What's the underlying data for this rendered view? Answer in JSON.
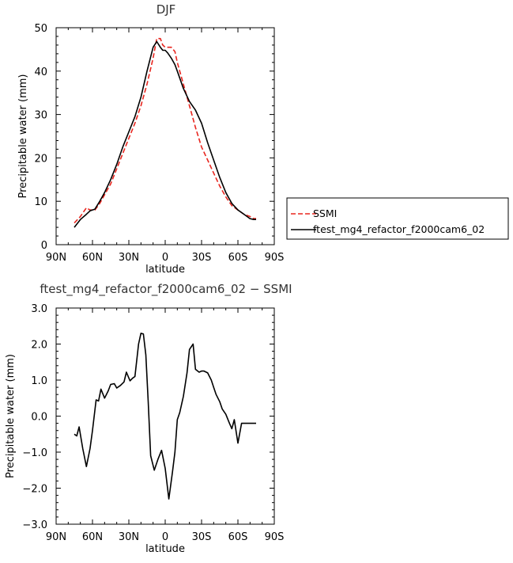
{
  "chart_data": [
    {
      "type": "line",
      "title": "DJF",
      "xlabel": "latitude",
      "ylabel": "Precipitable water (mm)",
      "xlim": [
        90,
        -90
      ],
      "ylim": [
        0,
        50
      ],
      "xticks": [
        90,
        60,
        30,
        0,
        -30,
        -60,
        -90
      ],
      "xticklabels": [
        "90N",
        "60N",
        "30N",
        "0",
        "30S",
        "60S",
        "90S"
      ],
      "yticks": [
        0,
        10,
        20,
        30,
        40,
        50
      ],
      "yticklabels": [
        "0",
        "10",
        "20",
        "30",
        "40",
        "50"
      ],
      "legend": "outside-right",
      "series": [
        {
          "name": "SSMI",
          "color": "#e8261f",
          "dash": true,
          "x": [
            75,
            70,
            65,
            62,
            58,
            54,
            50,
            45,
            40,
            35,
            30,
            25,
            20,
            15,
            10,
            7,
            4,
            2,
            0,
            -2,
            -5,
            -8,
            -10,
            -15,
            -20,
            -25,
            -30,
            -35,
            -40,
            -45,
            -50,
            -55,
            -60,
            -65,
            -70,
            -73,
            -75
          ],
          "y": [
            5.0,
            6.5,
            8.5,
            8.0,
            8.0,
            9.5,
            11.5,
            14.0,
            17.5,
            21.0,
            24.5,
            28.0,
            32.0,
            37.0,
            43.0,
            47.5,
            47.5,
            46.0,
            45.5,
            45.5,
            45.5,
            44.5,
            42.0,
            37.0,
            32.0,
            27.0,
            22.5,
            19.5,
            16.5,
            13.5,
            11.0,
            9.0,
            8.0,
            7.0,
            6.5,
            6.0,
            6.0
          ]
        },
        {
          "name": "ftest_mg4_refactor_f2000cam6_02",
          "color": "#000000",
          "dash": false,
          "x": [
            75,
            70,
            65,
            62,
            58,
            54,
            50,
            45,
            40,
            35,
            30,
            25,
            20,
            15,
            10,
            7,
            4,
            2,
            0,
            -2,
            -5,
            -8,
            -10,
            -15,
            -20,
            -25,
            -30,
            -35,
            -40,
            -45,
            -50,
            -55,
            -60,
            -65,
            -70,
            -73,
            -75
          ],
          "y": [
            4.0,
            5.8,
            7.0,
            7.8,
            8.2,
            10.0,
            12.0,
            15.0,
            18.5,
            22.5,
            26.0,
            29.5,
            34.0,
            40.0,
            45.5,
            46.8,
            45.5,
            44.8,
            44.8,
            44.2,
            43.0,
            41.5,
            40.0,
            36.0,
            33.0,
            31.0,
            28.0,
            23.5,
            19.5,
            15.5,
            12.0,
            9.5,
            8.0,
            7.0,
            6.0,
            5.8,
            5.8
          ]
        }
      ]
    },
    {
      "type": "line",
      "title": "ftest_mg4_refactor_f2000cam6_02 − SSMI",
      "xlabel": "latitude",
      "ylabel": "Precipitable water (mm)",
      "xlim": [
        90,
        -90
      ],
      "ylim": [
        -3,
        3
      ],
      "xticks": [
        90,
        60,
        30,
        0,
        -30,
        -60,
        -90
      ],
      "xticklabels": [
        "90N",
        "60N",
        "30N",
        "0",
        "30S",
        "60S",
        "90S"
      ],
      "yticks": [
        -3,
        -2,
        -1,
        0,
        1,
        2,
        3
      ],
      "yticklabels": [
        "−3.0",
        "−2.0",
        "−1.0",
        "0.0",
        "1.0",
        "2.0",
        "3.0"
      ],
      "series": [
        {
          "color": "#000000",
          "dash": false,
          "x": [
            75,
            73,
            71,
            68,
            65,
            62,
            60,
            57,
            55,
            53,
            50,
            47,
            45,
            42,
            40,
            37,
            34,
            32,
            29,
            27,
            25,
            22,
            20,
            18,
            16,
            14,
            12,
            9,
            6,
            3,
            0,
            -3,
            -6,
            -8,
            -10,
            -12,
            -15,
            -18,
            -20,
            -23,
            -25,
            -28,
            -30,
            -32,
            -35,
            -38,
            -40,
            -42,
            -45,
            -47,
            -50,
            -53,
            -55,
            -57,
            -60,
            -63,
            -65,
            -68,
            -70,
            -72,
            -75
          ],
          "y": [
            -0.5,
            -0.55,
            -0.3,
            -0.9,
            -1.4,
            -0.9,
            -0.4,
            0.45,
            0.42,
            0.75,
            0.5,
            0.7,
            0.88,
            0.9,
            0.78,
            0.85,
            0.95,
            1.22,
            0.98,
            1.05,
            1.1,
            2.0,
            2.3,
            2.28,
            1.7,
            0.4,
            -1.1,
            -1.5,
            -1.2,
            -0.95,
            -1.45,
            -2.3,
            -1.55,
            -1.0,
            -0.1,
            0.1,
            0.55,
            1.2,
            1.85,
            2.0,
            1.3,
            1.22,
            1.25,
            1.25,
            1.2,
            1.0,
            0.8,
            0.6,
            0.4,
            0.2,
            0.05,
            -0.2,
            -0.35,
            -0.1,
            -0.75,
            -0.2,
            -0.2,
            -0.2,
            -0.2,
            -0.2,
            -0.2
          ]
        }
      ]
    }
  ]
}
